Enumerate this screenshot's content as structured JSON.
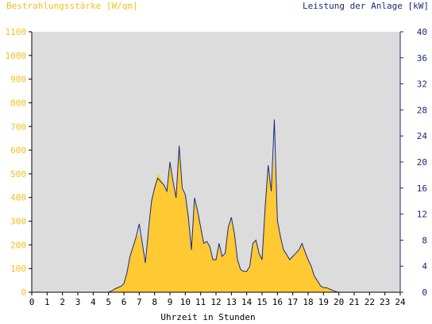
{
  "chart_data": {
    "type": "area",
    "left_axis_title": "Bestrahlungsstärke [W/qm]",
    "right_axis_title": "Leistung der Anlage [kW]",
    "xlabel": "Uhrzeit in Stunden",
    "xlim": [
      0,
      24
    ],
    "ylim_left": [
      0,
      1100
    ],
    "ylim_right": [
      0,
      40
    ],
    "x_ticks": [
      "0",
      "1",
      "2",
      "3",
      "4",
      "5",
      "6",
      "7",
      "8",
      "9",
      "10",
      "11",
      "12",
      "13",
      "14",
      "15",
      "16",
      "17",
      "18",
      "19",
      "20",
      "21",
      "22",
      "23",
      "24"
    ],
    "y_ticks_left": [
      "0",
      "100",
      "200",
      "300",
      "400",
      "500",
      "600",
      "700",
      "800",
      "900",
      "1000",
      "1100"
    ],
    "y_ticks_right": [
      "0",
      "4",
      "8",
      "12",
      "16",
      "20",
      "24",
      "28",
      "32",
      "36",
      "40"
    ],
    "grid": false,
    "colors": {
      "plot_background": "#dcdcdc",
      "irradiance_fill": "#ffc933",
      "power_line": "#1a2a7a",
      "left_axis_text": "#f0c020",
      "right_axis_text": "#1a2a7a",
      "axis_line_right": "#1a2a7a"
    },
    "series": [
      {
        "name": "Bestrahlungsstärke [W/qm]",
        "axis": "left",
        "x": [
          0,
          5.0,
          5.2,
          5.4,
          5.6,
          5.8,
          6.0,
          6.2,
          6.4,
          6.6,
          6.8,
          7.0,
          7.2,
          7.4,
          7.6,
          7.8,
          8.0,
          8.2,
          8.4,
          8.6,
          8.8,
          9.0,
          9.2,
          9.4,
          9.6,
          9.8,
          10.0,
          10.2,
          10.4,
          10.6,
          10.8,
          11.0,
          11.2,
          11.4,
          11.6,
          11.8,
          12.0,
          12.2,
          12.4,
          12.6,
          12.8,
          13.0,
          13.2,
          13.4,
          13.6,
          13.8,
          14.0,
          14.2,
          14.4,
          14.6,
          14.8,
          15.0,
          15.2,
          15.4,
          15.6,
          15.8,
          16.0,
          16.2,
          16.4,
          16.6,
          16.8,
          17.0,
          17.2,
          17.4,
          17.6,
          17.8,
          18.0,
          18.2,
          18.4,
          18.6,
          18.8,
          19.0,
          19.2,
          19.4,
          19.6,
          19.8,
          20.0,
          24
        ],
        "values": [
          0,
          0,
          5,
          15,
          20,
          25,
          35,
          80,
          150,
          190,
          230,
          250,
          200,
          130,
          250,
          380,
          440,
          500,
          480,
          450,
          420,
          540,
          470,
          400,
          610,
          440,
          400,
          320,
          180,
          390,
          340,
          280,
          200,
          210,
          190,
          140,
          140,
          210,
          150,
          160,
          270,
          310,
          250,
          140,
          100,
          90,
          90,
          110,
          200,
          220,
          160,
          140,
          360,
          520,
          420,
          590,
          300,
          240,
          180,
          160,
          140,
          150,
          160,
          180,
          200,
          170,
          140,
          110,
          70,
          50,
          30,
          20,
          20,
          15,
          10,
          5,
          0,
          0
        ]
      },
      {
        "name": "Leistung der Anlage [kW]",
        "axis": "right",
        "x": [
          0,
          5.0,
          5.2,
          5.4,
          5.6,
          5.8,
          6.0,
          6.2,
          6.4,
          6.6,
          6.8,
          7.0,
          7.2,
          7.4,
          7.6,
          7.8,
          8.0,
          8.2,
          8.4,
          8.6,
          8.8,
          9.0,
          9.2,
          9.4,
          9.6,
          9.8,
          10.0,
          10.2,
          10.4,
          10.6,
          10.8,
          11.0,
          11.2,
          11.4,
          11.6,
          11.8,
          12.0,
          12.2,
          12.4,
          12.6,
          12.8,
          13.0,
          13.2,
          13.4,
          13.6,
          13.8,
          14.0,
          14.2,
          14.4,
          14.6,
          14.8,
          15.0,
          15.2,
          15.4,
          15.6,
          15.8,
          16.0,
          16.2,
          16.4,
          16.6,
          16.8,
          17.0,
          17.2,
          17.4,
          17.6,
          17.8,
          18.0,
          18.2,
          18.4,
          18.6,
          18.8,
          19.0,
          19.2,
          19.4,
          19.6,
          19.8,
          20.0,
          24
        ],
        "values": [
          0,
          0,
          0.2,
          0.5,
          0.7,
          0.9,
          1.3,
          3.0,
          5.5,
          7.0,
          8.5,
          10.5,
          7.5,
          4.5,
          9.5,
          14.0,
          16.0,
          17.5,
          17.0,
          16.5,
          15.5,
          20.0,
          17.0,
          14.5,
          22.5,
          16.0,
          15.0,
          11.5,
          6.5,
          14.5,
          12.5,
          10.0,
          7.5,
          7.8,
          7.0,
          5.0,
          5.0,
          7.5,
          5.5,
          6.0,
          10.0,
          11.5,
          9.0,
          5.0,
          3.5,
          3.2,
          3.2,
          4.0,
          7.5,
          8.0,
          6.0,
          5.0,
          13.0,
          19.5,
          15.5,
          26.5,
          11.0,
          8.5,
          6.5,
          5.8,
          5.0,
          5.5,
          6.0,
          6.5,
          7.5,
          6.2,
          5.0,
          4.0,
          2.5,
          1.8,
          1.0,
          0.7,
          0.7,
          0.5,
          0.3,
          0.1,
          0,
          0
        ]
      }
    ]
  }
}
